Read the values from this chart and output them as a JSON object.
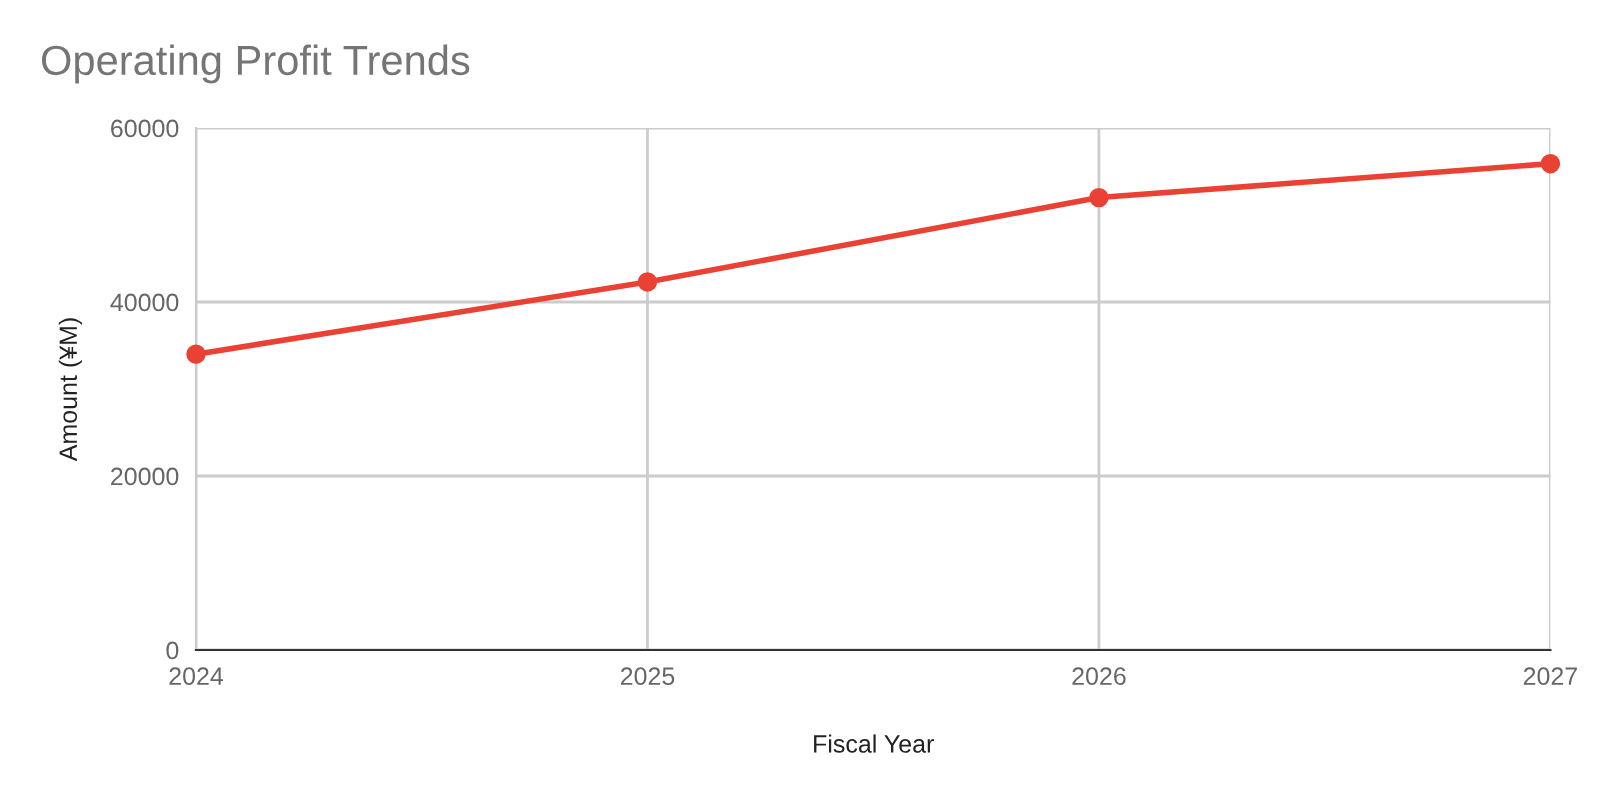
{
  "chart_data": {
    "type": "line",
    "title": "Operating Profit Trends",
    "xlabel": "Fiscal Year",
    "ylabel": "Amount (¥M)",
    "x": [
      2024,
      2025,
      2026,
      2027
    ],
    "series": [
      {
        "color": "#e94235",
        "values": [
          34000,
          42300,
          52000,
          55900
        ]
      }
    ],
    "xlim": [
      2024,
      2027
    ],
    "xticks": [
      2024,
      2025,
      2026,
      2027
    ],
    "ylim": [
      0,
      60000
    ],
    "yticks": [
      0,
      20000,
      40000,
      60000
    ],
    "grid": true,
    "marker": "circle",
    "line_style": "solid",
    "legend": false
  }
}
